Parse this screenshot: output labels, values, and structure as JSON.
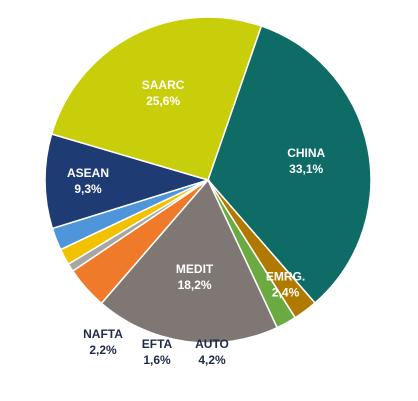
{
  "chart_data": {
    "type": "pie",
    "title": "",
    "start_angle_deg": -70.9,
    "direction": "clockwise",
    "slices": [
      {
        "label": "CHINA",
        "value_label": "33,1%",
        "value": 33.1,
        "color": "#0e6b66",
        "label_color": "#ffffff",
        "label_pos": "inside"
      },
      {
        "label": "EMRG.",
        "value_label": "2,4%",
        "value": 2.4,
        "color": "#b07a00",
        "label_color": "#ffffff",
        "label_pos": "inside"
      },
      {
        "label": "",
        "value_label": "",
        "value": 2.0,
        "color": "#6aaa40",
        "label_color": "#ffffff",
        "label_pos": "none"
      },
      {
        "label": "MEDIT",
        "value_label": "18,2%",
        "value": 18.2,
        "color": "#7f7773",
        "label_color": "#ffffff",
        "label_pos": "inside"
      },
      {
        "label": "AUTO",
        "value_label": "4,2%",
        "value": 4.2,
        "color": "#ef7a2a",
        "label_color": "#1f2b4a",
        "label_pos": "outside"
      },
      {
        "label": "",
        "value_label": "",
        "value": 0.8,
        "color": "#a6a6a6",
        "label_color": "#1f2b4a",
        "label_pos": "none"
      },
      {
        "label": "EFTA",
        "value_label": "1,6%",
        "value": 1.6,
        "color": "#f2c200",
        "label_color": "#1f2b4a",
        "label_pos": "outside"
      },
      {
        "label": "NAFTA",
        "value_label": "2,2%",
        "value": 2.2,
        "color": "#4e95d9",
        "label_color": "#1f2b4a",
        "label_pos": "outside"
      },
      {
        "label": "ASEAN",
        "value_label": "9,3%",
        "value": 9.3,
        "color": "#1f3b73",
        "label_color": "#ffffff",
        "label_pos": "inside"
      },
      {
        "label": "SAARC",
        "value_label": "25,6%",
        "value": 25.6,
        "color": "#c8cf0a",
        "label_color": "#ffffff",
        "label_pos": "inside"
      }
    ]
  }
}
